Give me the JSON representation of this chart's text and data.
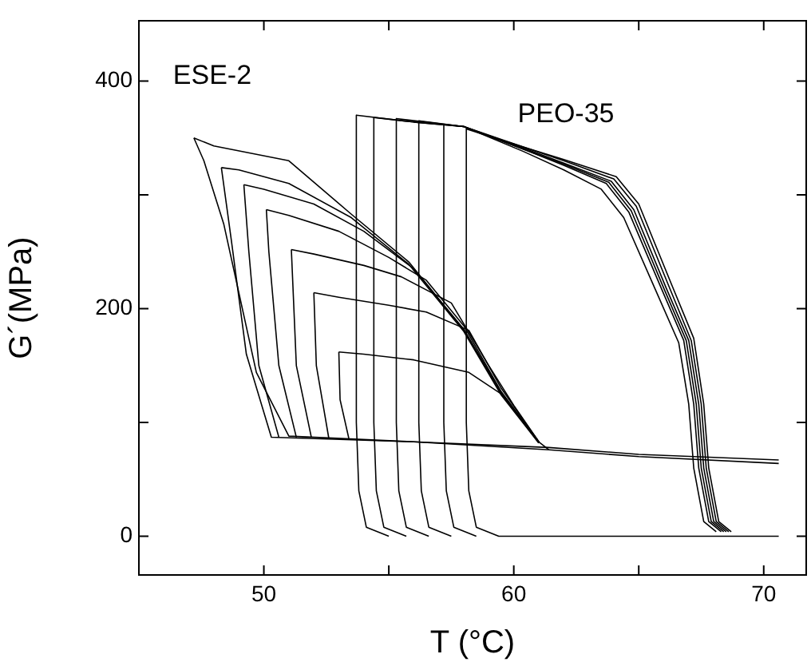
{
  "chart_data": {
    "type": "line",
    "xlabel": "T (°C)",
    "ylabel": "G´(MPa)",
    "xlim": [
      45,
      71.7
    ],
    "ylim": [
      -34,
      453
    ],
    "xticks": [
      50,
      {
        "value": 55,
        "label": null
      },
      60,
      {
        "value": 65,
        "label": null
      },
      70
    ],
    "yticks": [
      0,
      {
        "value": 100,
        "label": null
      },
      200,
      {
        "value": 300,
        "label": null
      },
      400
    ],
    "annotations": [
      "ESE-2",
      "PEO-35"
    ],
    "series": [
      {
        "color": "#000000",
        "x": [
          47.2,
          47.6,
          48.4,
          49.7,
          51.0,
          56,
          61.4,
          65,
          70.6
        ],
        "values": [
          350,
          330,
          274,
          144,
          88,
          83,
          76,
          70,
          64
        ]
      },
      {
        "color": "#000000",
        "x": [
          47.2,
          48,
          51,
          53.5,
          55.8,
          58,
          59.5,
          61,
          61.4
        ],
        "values": [
          350,
          343,
          330,
          283,
          241,
          181,
          125,
          83,
          76
        ]
      },
      {
        "color": "#000000",
        "x": [
          48.3,
          48.7,
          49.3,
          50.3,
          56,
          61.4,
          65,
          70.6
        ],
        "values": [
          324,
          260,
          160,
          87,
          83,
          78,
          72,
          67
        ]
      },
      {
        "color": "#000000",
        "x": [
          48.3,
          49,
          51,
          53.5,
          55.8,
          58,
          59.5,
          61
        ],
        "values": [
          324,
          322,
          310,
          280,
          239,
          180,
          124,
          82
        ]
      },
      {
        "color": "#000000",
        "x": [
          49.2,
          49.4,
          49.8,
          50.6
        ],
        "values": [
          309,
          250,
          150,
          87
        ]
      },
      {
        "color": "#000000",
        "x": [
          49.2,
          50,
          52,
          54,
          56,
          58,
          59.5,
          61
        ],
        "values": [
          309,
          305,
          292,
          268,
          235,
          182,
          126,
          82
        ]
      },
      {
        "color": "#000000",
        "x": [
          50.1,
          50.2,
          50.6,
          51.3
        ],
        "values": [
          287,
          250,
          150,
          87
        ]
      },
      {
        "color": "#000000",
        "x": [
          50.1,
          51,
          53,
          55,
          56.5,
          58,
          59.5,
          61
        ],
        "values": [
          287,
          282,
          268,
          245,
          225,
          185,
          127,
          83
        ]
      },
      {
        "color": "#000000",
        "x": [
          51.1,
          51.3,
          51.9
        ],
        "values": [
          252,
          150,
          87
        ]
      },
      {
        "color": "#000000",
        "x": [
          51.1,
          52,
          54,
          55.5,
          57.5,
          59,
          60,
          61
        ],
        "values": [
          252,
          248,
          238,
          228,
          205,
          150,
          115,
          83
        ]
      },
      {
        "color": "#000000",
        "x": [
          52.0,
          52.1,
          52.6
        ],
        "values": [
          214,
          150,
          86
        ]
      },
      {
        "color": "#000000",
        "x": [
          52.0,
          53,
          55,
          56.5,
          58.2,
          59.5,
          61
        ],
        "values": [
          214,
          210,
          203,
          197,
          181,
          130,
          83
        ]
      },
      {
        "color": "#000000",
        "x": [
          53.0,
          53.05,
          53.4
        ],
        "values": [
          162,
          120,
          86
        ]
      },
      {
        "color": "#000000",
        "x": [
          53.0,
          54,
          56,
          58.2,
          59.5,
          61
        ],
        "values": [
          162,
          160,
          155,
          144,
          125,
          83
        ]
      },
      {
        "color": "#000000",
        "x": [
          53.7,
          53.7,
          53.8,
          54.1,
          55.0
        ],
        "values": [
          370,
          100,
          40,
          8,
          0
        ]
      },
      {
        "color": "#000000",
        "x": [
          53.7,
          56,
          58,
          60.4,
          62,
          63.7,
          64.6,
          65.9,
          66.8,
          67.2,
          67.4,
          67.8,
          68.3
        ],
        "values": [
          370,
          364,
          360,
          340,
          326,
          310,
          285,
          218,
          172,
          116,
          60,
          13,
          4
        ]
      },
      {
        "color": "#000000",
        "x": [
          54.4,
          54.4,
          54.5,
          54.8,
          55.7
        ],
        "values": [
          368,
          100,
          40,
          8,
          0
        ]
      },
      {
        "color": "#000000",
        "x": [
          54.4,
          56,
          58,
          60.4,
          62,
          63.9,
          64.8,
          66.1,
          67.0,
          67.4,
          67.6,
          68.0,
          68.5
        ],
        "values": [
          368,
          364,
          360,
          341,
          328,
          312,
          287,
          218,
          172,
          116,
          60,
          13,
          4
        ]
      },
      {
        "color": "#000000",
        "x": [
          55.3,
          55.3,
          55.4,
          55.7,
          56.6
        ],
        "values": [
          367,
          100,
          40,
          8,
          0
        ]
      },
      {
        "color": "#000000",
        "x": [
          55.3,
          58,
          60.4,
          62,
          64.0,
          64.9,
          66.2,
          67.1,
          67.5,
          67.7,
          68.1,
          68.6
        ],
        "values": [
          367,
          360,
          342,
          330,
          314,
          290,
          220,
          172,
          116,
          60,
          13,
          4
        ]
      },
      {
        "color": "#000000",
        "x": [
          56.2,
          56.2,
          56.3,
          56.6,
          57.5
        ],
        "values": [
          365,
          100,
          40,
          8,
          0
        ]
      },
      {
        "color": "#000000",
        "x": [
          56.2,
          58,
          60.4,
          62,
          63.5,
          64.4,
          65.7,
          66.6,
          67.0,
          67.2,
          67.6,
          68.1
        ],
        "values": [
          365,
          360,
          338,
          322,
          305,
          280,
          215,
          170,
          116,
          60,
          13,
          4
        ]
      },
      {
        "color": "#000000",
        "x": [
          57.2,
          57.2,
          57.3,
          57.6,
          58.5
        ],
        "values": [
          362,
          100,
          40,
          8,
          0
        ]
      },
      {
        "color": "#000000",
        "x": [
          57.2,
          58,
          60.4,
          62,
          63.8,
          64.7,
          66.0,
          66.9,
          67.3,
          67.5,
          67.9,
          68.4
        ],
        "values": [
          362,
          360,
          340,
          327,
          311,
          286,
          218,
          172,
          116,
          60,
          13,
          4
        ]
      },
      {
        "color": "#000000",
        "x": [
          58.1,
          58.1,
          58.2,
          58.5,
          59.4,
          65,
          70.6
        ],
        "values": [
          358,
          100,
          40,
          8,
          0,
          0,
          0
        ]
      },
      {
        "color": "#000000",
        "x": [
          58.1,
          60.4,
          62,
          64.1,
          65.0,
          66.3,
          67.2,
          67.6,
          67.8,
          68.2,
          68.7
        ],
        "values": [
          358,
          342,
          331,
          316,
          292,
          222,
          174,
          116,
          60,
          13,
          4
        ]
      }
    ]
  }
}
